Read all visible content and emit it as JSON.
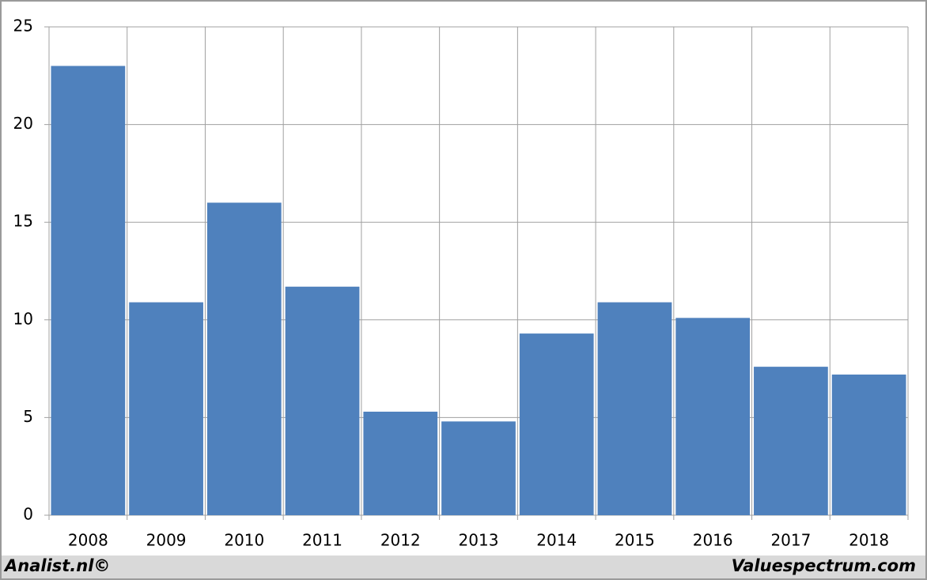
{
  "chart_data": {
    "type": "bar",
    "categories": [
      "2008",
      "2009",
      "2010",
      "2011",
      "2012",
      "2013",
      "2014",
      "2015",
      "2016",
      "2017",
      "2018"
    ],
    "values": [
      23,
      10.9,
      16.0,
      11.7,
      5.3,
      4.8,
      9.3,
      10.9,
      10.1,
      7.6,
      7.2
    ],
    "color": "#4f81bd",
    "ylim": [
      0,
      25
    ],
    "yticks": [
      0,
      5,
      10,
      15,
      20,
      25
    ],
    "grid": true,
    "footer_left": "Analist.nl©",
    "footer_right": "Valuespectrum.com"
  }
}
